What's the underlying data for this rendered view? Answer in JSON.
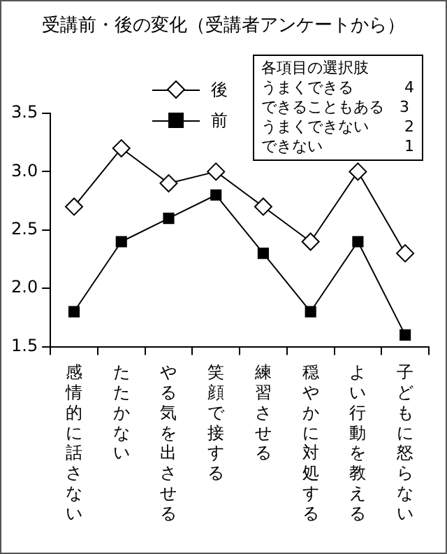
{
  "chart_data": {
    "type": "line",
    "title": "受講前・後の変化（受講者アンケートから）",
    "categories": [
      "感情的に話さない",
      "たたかない",
      "やる気を出させる",
      "笑顔で接する",
      "練習させる",
      "穏やかに対処する",
      "よい行動を教える",
      "子どもに怒らない"
    ],
    "series": [
      {
        "name": "後",
        "color": "#000000",
        "marker": "diamond",
        "values": [
          2.7,
          3.2,
          2.9,
          3.0,
          2.7,
          2.4,
          3.0,
          2.3
        ]
      },
      {
        "name": "前",
        "color": "#000000",
        "marker": "square",
        "values": [
          1.8,
          2.4,
          2.6,
          2.8,
          2.3,
          1.8,
          2.4,
          1.6
        ]
      }
    ],
    "ylim": [
      1.5,
      3.5
    ],
    "yticks": [
      {
        "value": 1.5,
        "label": "1.5"
      },
      {
        "value": 2,
        "label": "2.0"
      },
      {
        "value": 2.5,
        "label": "2.5"
      },
      {
        "value": 3,
        "label": "3.0"
      },
      {
        "value": 3.5,
        "label": "3.5"
      }
    ],
    "legend": "top",
    "annotations": [
      "各項目の選択肢",
      "うまくできる　　　 4",
      "できることもある　3",
      "うまくできない　　 2",
      "できない　　　　　 1"
    ]
  }
}
